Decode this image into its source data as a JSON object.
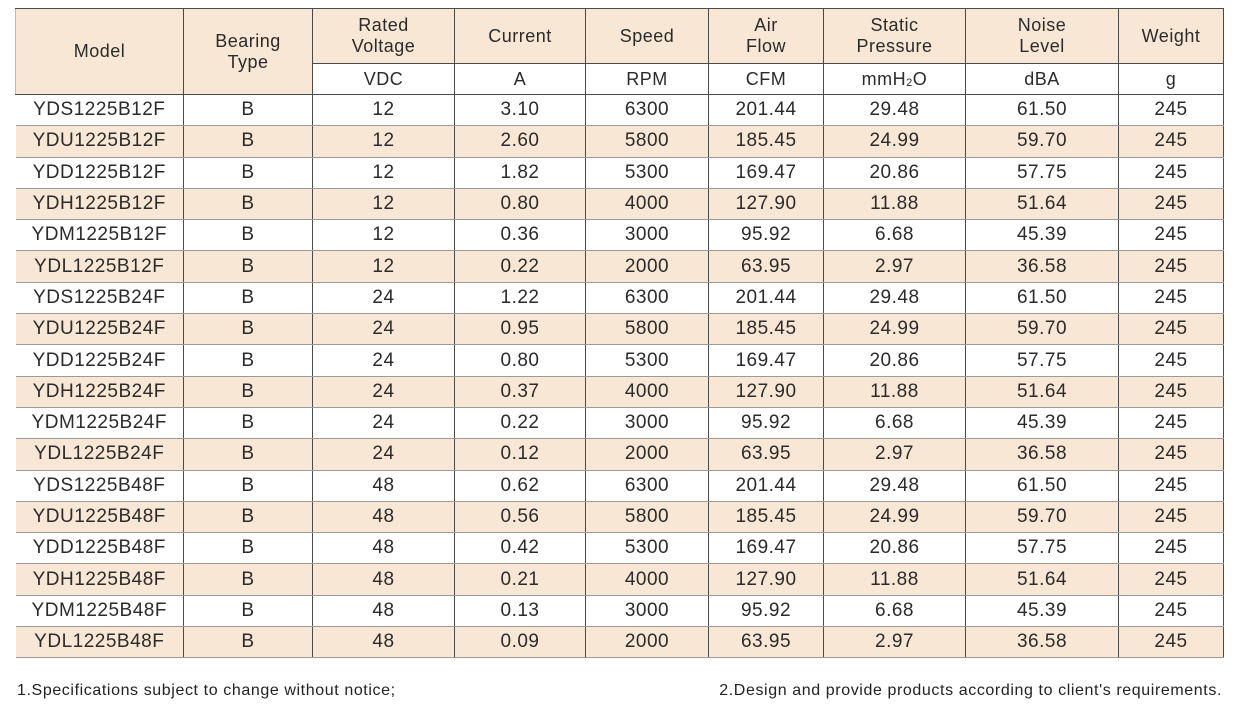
{
  "table": {
    "headers": [
      "Model",
      "Bearing Type",
      "Rated Voltage",
      "Current",
      "Speed",
      "Air Flow",
      "Static Pressure",
      "Noise Level",
      "Weight"
    ],
    "units": [
      "VDC",
      "A",
      "RPM",
      "CFM",
      "mmH2O",
      "dBA",
      "g"
    ],
    "rows": [
      [
        "YDS1225B12F",
        "B",
        "12",
        "3.10",
        "6300",
        "201.44",
        "29.48",
        "61.50",
        "245"
      ],
      [
        "YDU1225B12F",
        "B",
        "12",
        "2.60",
        "5800",
        "185.45",
        "24.99",
        "59.70",
        "245"
      ],
      [
        "YDD1225B12F",
        "B",
        "12",
        "1.82",
        "5300",
        "169.47",
        "20.86",
        "57.75",
        "245"
      ],
      [
        "YDH1225B12F",
        "B",
        "12",
        "0.80",
        "4000",
        "127.90",
        "11.88",
        "51.64",
        "245"
      ],
      [
        "YDM1225B12F",
        "B",
        "12",
        "0.36",
        "3000",
        "95.92",
        "6.68",
        "45.39",
        "245"
      ],
      [
        "YDL1225B12F",
        "B",
        "12",
        "0.22",
        "2000",
        "63.95",
        "2.97",
        "36.58",
        "245"
      ],
      [
        "YDS1225B24F",
        "B",
        "24",
        "1.22",
        "6300",
        "201.44",
        "29.48",
        "61.50",
        "245"
      ],
      [
        "YDU1225B24F",
        "B",
        "24",
        "0.95",
        "5800",
        "185.45",
        "24.99",
        "59.70",
        "245"
      ],
      [
        "YDD1225B24F",
        "B",
        "24",
        "0.80",
        "5300",
        "169.47",
        "20.86",
        "57.75",
        "245"
      ],
      [
        "YDH1225B24F",
        "B",
        "24",
        "0.37",
        "4000",
        "127.90",
        "11.88",
        "51.64",
        "245"
      ],
      [
        "YDM1225B24F",
        "B",
        "24",
        "0.22",
        "3000",
        "95.92",
        "6.68",
        "45.39",
        "245"
      ],
      [
        "YDL1225B24F",
        "B",
        "24",
        "0.12",
        "2000",
        "63.95",
        "2.97",
        "36.58",
        "245"
      ],
      [
        "YDS1225B48F",
        "B",
        "48",
        "0.62",
        "6300",
        "201.44",
        "29.48",
        "61.50",
        "245"
      ],
      [
        "YDU1225B48F",
        "B",
        "48",
        "0.56",
        "5800",
        "185.45",
        "24.99",
        "59.70",
        "245"
      ],
      [
        "YDD1225B48F",
        "B",
        "48",
        "0.42",
        "5300",
        "169.47",
        "20.86",
        "57.75",
        "245"
      ],
      [
        "YDH1225B48F",
        "B",
        "48",
        "0.21",
        "4000",
        "127.90",
        "11.88",
        "51.64",
        "245"
      ],
      [
        "YDM1225B48F",
        "B",
        "48",
        "0.13",
        "3000",
        "95.92",
        "6.68",
        "45.39",
        "245"
      ],
      [
        "YDL1225B48F",
        "B",
        "48",
        "0.09",
        "2000",
        "63.95",
        "2.97",
        "36.58",
        "245"
      ]
    ]
  },
  "notes": {
    "note1": "1.Specifications subject to change without notice;",
    "note2": "2.Design and provide products according to client's requirements."
  },
  "colors": {
    "header_bg": "#f8e7d4",
    "stripe_bg": "#f8e7d4",
    "border": "#4a4a4a"
  }
}
